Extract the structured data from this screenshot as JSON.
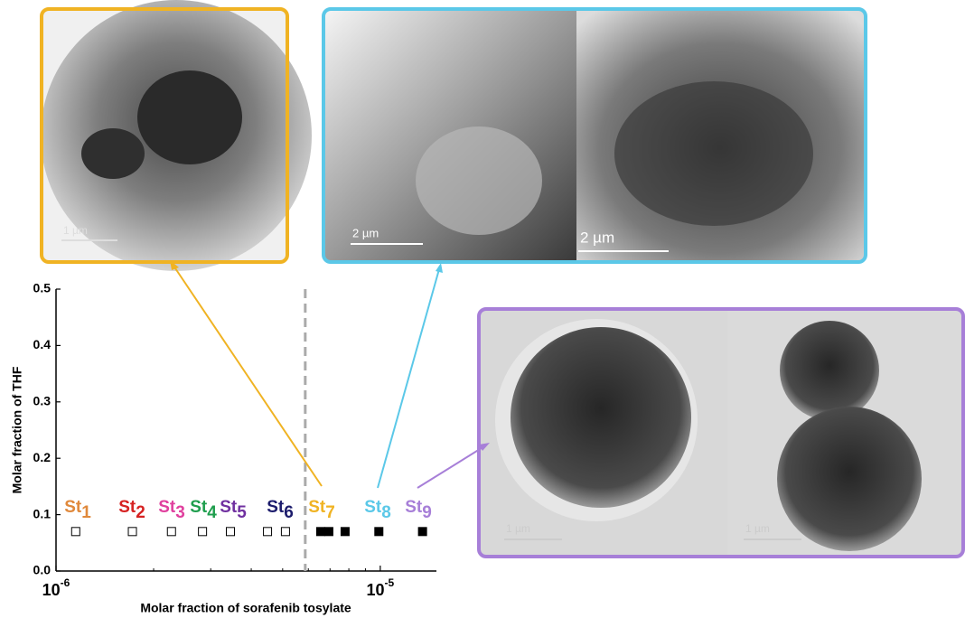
{
  "chart_data": {
    "type": "scatter",
    "xlabel": "Molar fraction of sorafenib tosylate",
    "ylabel": "Molar fraction of THF",
    "xscale": "log",
    "xlim": [
      1e-06,
      1.49e-05
    ],
    "ylim": [
      0,
      0.5
    ],
    "xticks": [
      {
        "value": 1e-06,
        "label": "10",
        "sup": "-6"
      },
      {
        "value": 1e-05,
        "label": "10",
        "sup": "-5"
      }
    ],
    "yticks": [
      {
        "value": 0,
        "label": "0.0"
      },
      {
        "value": 0.1,
        "label": "0.1"
      },
      {
        "value": 0.2,
        "label": "0.2"
      },
      {
        "value": 0.3,
        "label": "0.3"
      },
      {
        "value": 0.4,
        "label": "0.4"
      },
      {
        "value": 0.5,
        "label": "0.5"
      }
    ],
    "series": [
      {
        "marker": "open",
        "color": "#000000",
        "x": [
          1.15e-06,
          1.72e-06,
          2.27e-06,
          2.83e-06,
          3.45e-06,
          4.49e-06,
          5.1e-06
        ],
        "values": [
          0.07,
          0.07,
          0.07,
          0.07,
          0.07,
          0.07,
          0.07
        ]
      },
      {
        "marker": "filled",
        "color": "#000000",
        "x": [
          6.55e-06,
          6.94e-06,
          7.79e-06,
          9.9e-06,
          1.35e-05
        ],
        "values": [
          0.07,
          0.07,
          0.07,
          0.07,
          0.07
        ]
      }
    ],
    "vline": {
      "x": 5.87e-06,
      "color": "#aaaaaa",
      "style": "dashed"
    },
    "annotations": [
      {
        "text": "St",
        "sub": "1",
        "color": "#e0893c"
      },
      {
        "text": "St",
        "sub": "2",
        "color": "#d62222"
      },
      {
        "text": "St",
        "sub": "3",
        "color": "#e0409e"
      },
      {
        "text": "St",
        "sub": "4",
        "color": "#1f9e4e"
      },
      {
        "text": "St",
        "sub": "5",
        "color": "#7030a0"
      },
      {
        "text": "St",
        "sub": "6",
        "color": "#1c1c6c"
      },
      {
        "text": "St",
        "sub": "7",
        "color": "#f0b323"
      },
      {
        "text": "St",
        "sub": "8",
        "color": "#5bc8e8"
      },
      {
        "text": "St",
        "sub": "9",
        "color": "#a77fd8"
      }
    ]
  },
  "panels": [
    {
      "color": "#f0b323",
      "images": [
        {
          "scale_bar": "1 µm"
        }
      ]
    },
    {
      "color": "#5bc8e8",
      "images": [
        {
          "scale_bar": "2 µm"
        },
        {
          "scale_bar": "2 µm"
        }
      ]
    },
    {
      "color": "#a77fd8",
      "images": [
        {
          "scale_bar": "1 µm"
        },
        {
          "scale_bar": "1 µm"
        }
      ]
    }
  ]
}
